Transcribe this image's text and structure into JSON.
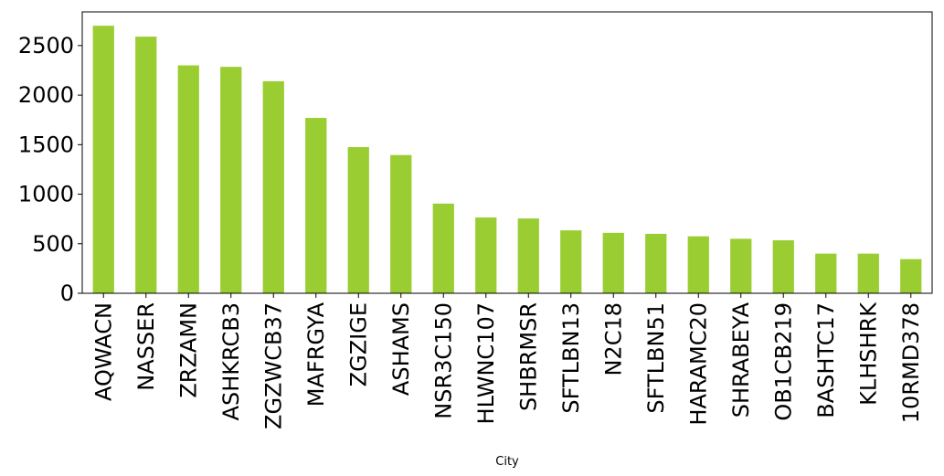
{
  "chart_data": {
    "type": "bar",
    "title": "",
    "xlabel": "City",
    "ylabel": "",
    "categories": [
      "AQWACN",
      "NASSER",
      "ZRZAMN",
      "ASHKRCB3",
      "ZGZWCB37",
      "MAFRGYA",
      "ZGZIGE",
      "ASHAMS",
      "NSR3C150",
      "HLWNC107",
      "SHBRMSR",
      "SFTLBN13",
      "N2C18",
      "SFTLBN51",
      "HARAMC20",
      "SHRABEYA",
      "OB1CB219",
      "BASHTC17",
      "KLHSHRK",
      "10RMD378"
    ],
    "values": [
      2700,
      2590,
      2300,
      2285,
      2140,
      1770,
      1475,
      1395,
      905,
      765,
      755,
      635,
      610,
      600,
      575,
      550,
      535,
      400,
      400,
      345
    ],
    "yticks": [
      0,
      500,
      1000,
      1500,
      2000,
      2500
    ],
    "ylim": [
      0,
      2840
    ],
    "grid": false,
    "legend": "none",
    "bar_color": "#9acd32"
  }
}
